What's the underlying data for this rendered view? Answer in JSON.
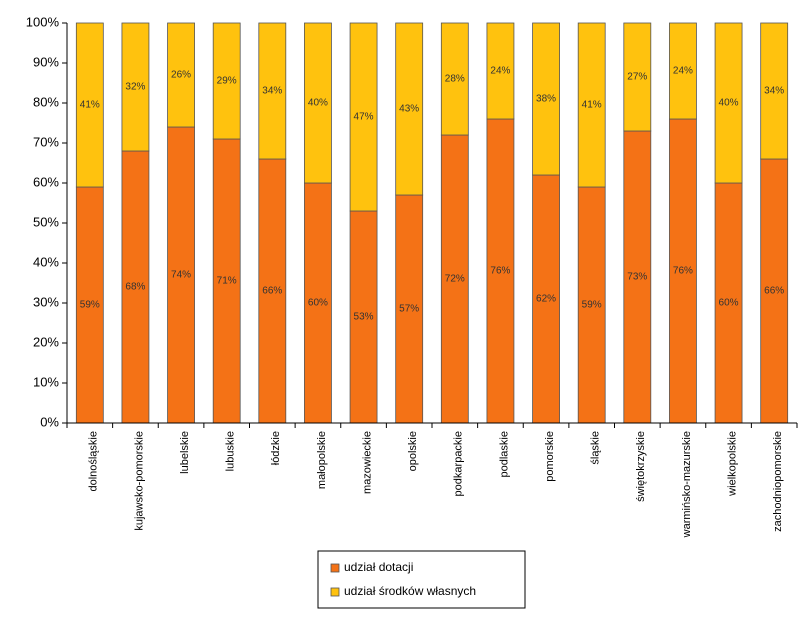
{
  "chart_data": {
    "type": "bar",
    "stacked": true,
    "percent": true,
    "categories": [
      "dolnośląskie",
      "kujawsko-pomorskie",
      "lubelskie",
      "lubuskie",
      "łódzkie",
      "małopolskie",
      "mazowieckie",
      "opolskie",
      "podkarpackie",
      "podlaskie",
      "pomorskie",
      "śląskie",
      "świętokrzyskie",
      "warmińsko-mazurskie",
      "wielkopolskie",
      "zachodniopomorskie"
    ],
    "series": [
      {
        "name": "udział dotacji",
        "color": "#F47216",
        "values": [
          59,
          68,
          74,
          71,
          66,
          60,
          53,
          57,
          72,
          76,
          62,
          59,
          73,
          76,
          60,
          66
        ],
        "labels": [
          "59%",
          "68%",
          "74%",
          "71%",
          "66%",
          "60%",
          "53%",
          "57%",
          "72%",
          "76%",
          "62%",
          "59%",
          "73%",
          "76%",
          "60%",
          "66%"
        ]
      },
      {
        "name": "udział środków własnych",
        "color": "#FFC20E",
        "values": [
          41,
          32,
          26,
          29,
          34,
          40,
          47,
          43,
          28,
          24,
          38,
          41,
          27,
          24,
          40,
          34
        ],
        "labels": [
          "41%",
          "32%",
          "26%",
          "29%",
          "34%",
          "40%",
          "47%",
          "43%",
          "28%",
          "24%",
          "38%",
          "41%",
          "27%",
          "24%",
          "40%",
          "34%"
        ]
      }
    ],
    "ylim": [
      0,
      100
    ],
    "yticks": [
      "0%",
      "10%",
      "20%",
      "30%",
      "40%",
      "50%",
      "60%",
      "70%",
      "80%",
      "90%",
      "100%"
    ],
    "grid": false,
    "legend_position": "bottom"
  }
}
